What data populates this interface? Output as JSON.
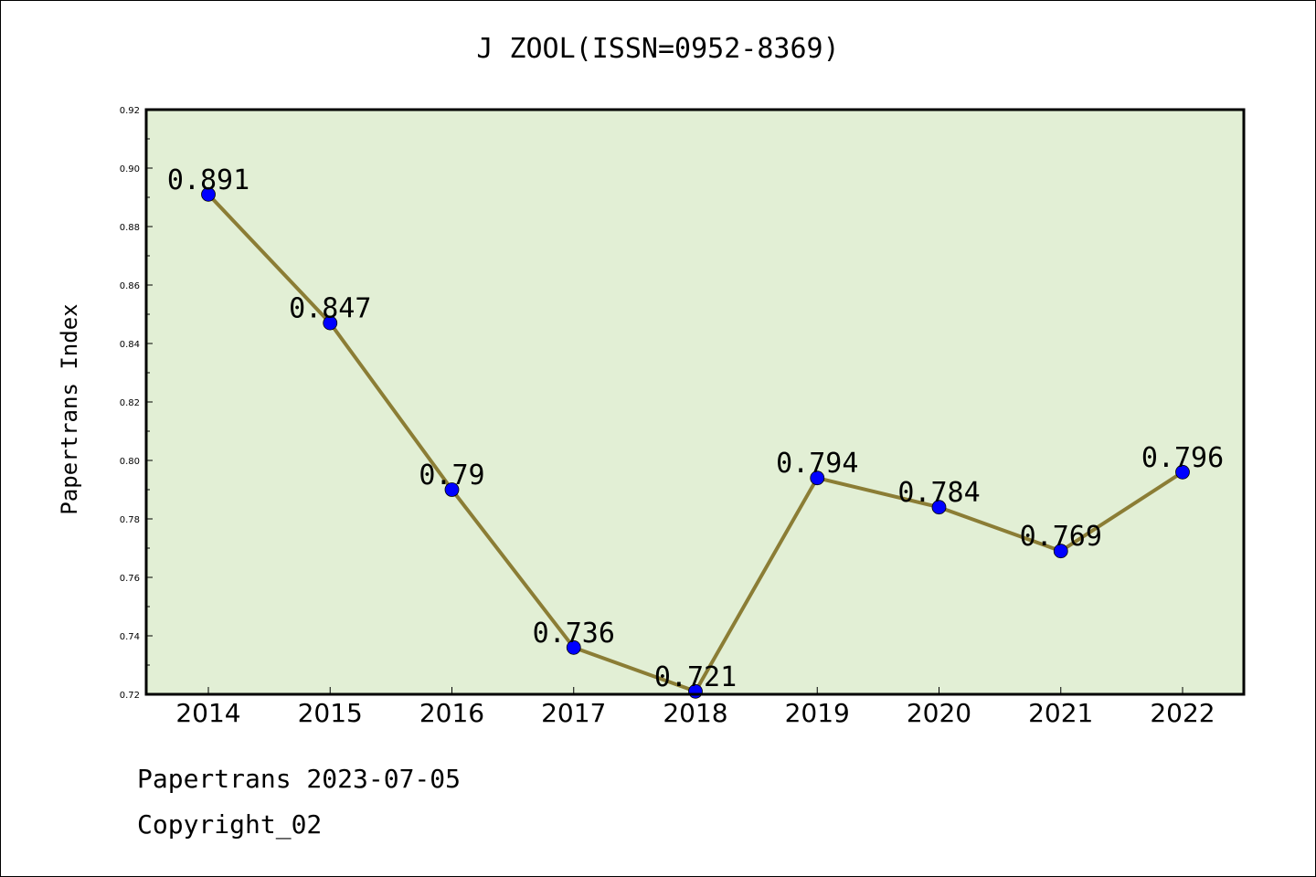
{
  "chart_data": {
    "type": "line",
    "title": "J ZOOL(ISSN=0952-8369)",
    "ylabel": "Papertrans Index",
    "xlabel": "",
    "categories": [
      "2014",
      "2015",
      "2016",
      "2017",
      "2018",
      "2019",
      "2020",
      "2021",
      "2022"
    ],
    "series": [
      {
        "values": [
          0.891,
          0.847,
          0.79,
          0.736,
          0.721,
          0.794,
          0.784,
          0.769,
          0.796
        ]
      }
    ],
    "data_labels": [
      "0.891",
      "0.847",
      "0.79",
      "0.736",
      "0.721",
      "0.794",
      "0.784",
      "0.769",
      "0.796"
    ],
    "ylim": [
      0.72,
      0.92
    ],
    "yticks": [
      "0.72",
      "0.74",
      "0.76",
      "0.78",
      "0.80",
      "0.82",
      "0.84",
      "0.86",
      "0.88",
      "0.90",
      "0.92"
    ],
    "grid": false,
    "legend": "none",
    "colors": {
      "plot_bg": "#e2efd5",
      "line": "#8b7d35",
      "marker": "#0000ff"
    }
  },
  "footer": {
    "line1": "Papertrans 2023-07-05",
    "line2": "Copyright_02"
  }
}
